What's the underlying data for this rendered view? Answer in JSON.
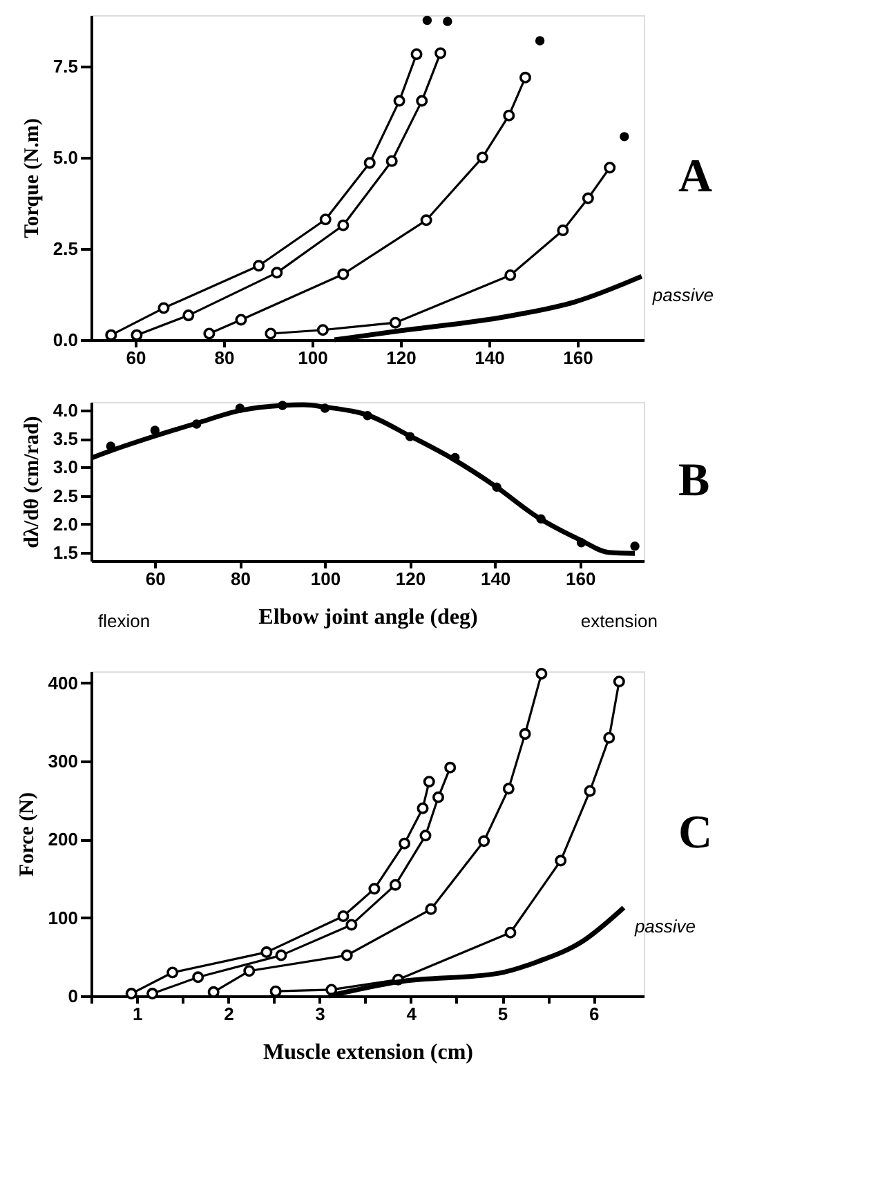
{
  "chart_data": [
    {
      "type": "line",
      "annotations": [
        "A"
      ],
      "ylabel": "Torque (N.m)",
      "xlim": [
        50,
        175
      ],
      "xticks": [
        60,
        80,
        100,
        120,
        140,
        160
      ],
      "ylim": [
        0,
        8.9
      ],
      "yticks": [
        {
          "value": 0,
          "label": "0.0"
        },
        2.5,
        {
          "value": 5,
          "label": "5.0"
        },
        7.5
      ],
      "grid": false,
      "marker": "circle",
      "line_style": "solid",
      "series": [
        {
          "color": "#000000",
          "x": [
            54.5,
            66.4,
            87.9,
            103,
            113,
            119.7,
            123.6
          ],
          "values": [
            0.13,
            0.87,
            2.03,
            3.3,
            4.85,
            6.55,
            7.83
          ]
        },
        {
          "color": "#000000",
          "x": [
            60.3,
            72,
            92,
            107,
            118,
            124.8,
            129
          ],
          "values": [
            0.13,
            0.67,
            1.84,
            3.14,
            4.9,
            6.55,
            7.86
          ]
        },
        {
          "color": "#000000",
          "x": [
            76.7,
            83.9,
            107,
            125.8,
            138.5,
            144.5,
            148.2
          ],
          "values": [
            0.17,
            0.55,
            1.8,
            3.28,
            5.0,
            6.15,
            7.19
          ]
        },
        {
          "color": "#000000",
          "x": [
            90.6,
            102.4,
            118.8,
            144.8,
            156.7,
            162.4,
            167.3
          ],
          "values": [
            0.17,
            0.27,
            0.47,
            1.77,
            3.0,
            3.88,
            4.72
          ]
        },
        {
          "type": "scatter",
          "color": "#000000",
          "x": [
            126,
            130.6,
            151.5,
            170.6
          ],
          "values": [
            8.76,
            8.73,
            8.2,
            5.57
          ]
        },
        {
          "name": "passive",
          "marker": "none",
          "color": "#000000",
          "x": [
            105,
            120,
            144,
            159.4,
            174.5
          ],
          "values": [
            0,
            0.25,
            0.64,
            1.04,
            1.74
          ]
        }
      ]
    },
    {
      "type": "line",
      "xlabel": "Elbow joint angle (deg)",
      "ylabel": "dλ/dθ (cm/rad)",
      "annotations": [
        "flexion",
        "extension",
        "B"
      ],
      "xlim": [
        45,
        175
      ],
      "xticks": [
        60,
        80,
        100,
        120,
        140,
        160
      ],
      "ylim": [
        1.35,
        4.15
      ],
      "yticks": [
        1.5,
        {
          "value": 2,
          "label": "2.0"
        },
        2.5,
        {
          "value": 3,
          "label": "3.0"
        },
        3.5,
        {
          "value": 4,
          "label": "4.0"
        }
      ],
      "grid": false,
      "marker": "none",
      "line_style": "solid",
      "series": [
        {
          "color": "#000000",
          "x": [
            45.3,
            50,
            60,
            70,
            80,
            90,
            95,
            100,
            110,
            120,
            130,
            140,
            150,
            160,
            166.7,
            172.9
          ],
          "values": [
            3.17,
            3.3,
            3.55,
            3.78,
            4.0,
            4.09,
            4.1,
            4.06,
            3.92,
            3.55,
            3.15,
            2.67,
            2.12,
            1.72,
            1.5,
            1.48
          ]
        },
        {
          "type": "scatter",
          "marker": "circle",
          "color": "#000000",
          "x": [
            49.6,
            60,
            69.8,
            80,
            90,
            100,
            110,
            120,
            130.6,
            140.4,
            150.8,
            160.3,
            172.9
          ],
          "values": [
            3.37,
            3.65,
            3.76,
            4.04,
            4.09,
            4.04,
            3.91,
            3.54,
            3.17,
            2.65,
            2.09,
            1.67,
            1.61
          ]
        }
      ]
    },
    {
      "type": "line",
      "annotations": [
        "C"
      ],
      "xlabel": "Muscle extension (cm)",
      "ylabel": "Force (N)",
      "xlim": [
        0.5,
        6.55
      ],
      "xticks": [
        {
          "value": 0.5,
          "label": null
        },
        1,
        {
          "value": 1.5,
          "label": null
        },
        2,
        {
          "value": 2.5,
          "label": null
        },
        3,
        {
          "value": 3.5,
          "label": null
        },
        4,
        {
          "value": 4.5,
          "label": null
        },
        5,
        {
          "value": 5.5,
          "label": null
        },
        6
      ],
      "ylim": [
        0,
        415
      ],
      "yticks": [
        0,
        100,
        200,
        300,
        400
      ],
      "grid": false,
      "marker": "circle",
      "line_style": "solid",
      "series": [
        {
          "color": "#000000",
          "x": [
            0.94,
            1.39,
            2.42,
            3.26,
            3.6,
            3.93,
            4.13,
            4.2
          ],
          "values": [
            3,
            30,
            56,
            102,
            137,
            195,
            240,
            274
          ]
        },
        {
          "color": "#000000",
          "x": [
            1.17,
            1.67,
            2.58,
            3.35,
            3.83,
            4.16,
            4.3,
            4.43
          ],
          "values": [
            3,
            24,
            52,
            91,
            142,
            205,
            254,
            292
          ]
        },
        {
          "color": "#000000",
          "x": [
            1.84,
            2.23,
            3.3,
            4.22,
            4.8,
            5.07,
            5.25,
            5.43
          ],
          "values": [
            5,
            32,
            52,
            111,
            198,
            265,
            335,
            412
          ]
        },
        {
          "color": "#000000",
          "x": [
            2.52,
            3.13,
            3.86,
            5.09,
            5.64,
            5.96,
            6.17,
            6.28
          ],
          "values": [
            6,
            8,
            21,
            81,
            173,
            262,
            330,
            402
          ]
        },
        {
          "name": "passive",
          "marker": "none",
          "color": "#000000",
          "x": [
            3.1,
            3.86,
            4.96,
            5.39,
            5.88,
            6.33
          ],
          "values": [
            0,
            18,
            29,
            44,
            70,
            113
          ]
        }
      ]
    }
  ]
}
